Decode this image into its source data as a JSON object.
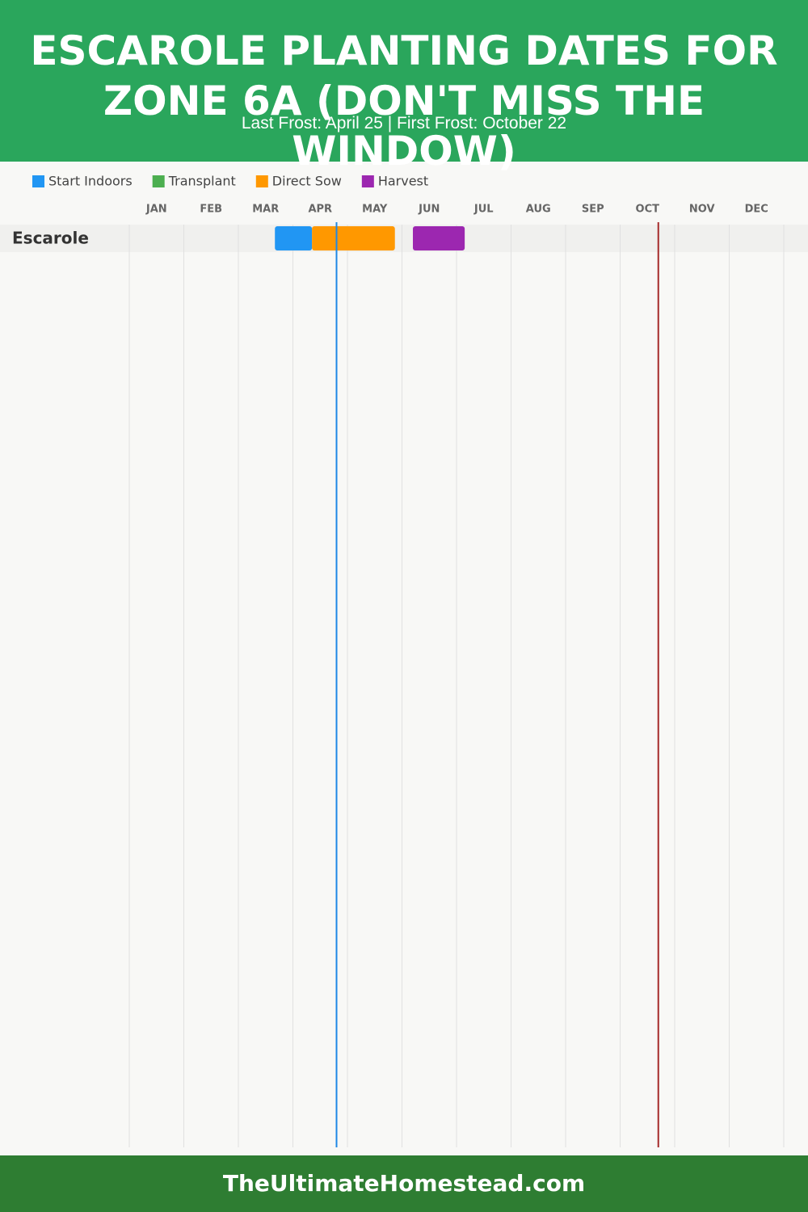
{
  "chart_data": {
    "type": "gantt",
    "title": "ESCAROLE PLANTING DATES FOR ZONE 6A (DON'T MISS THE WINDOW)",
    "subtitle": "Last Frost: April 25 | First Frost: October 22",
    "categories": [
      "JAN",
      "FEB",
      "MAR",
      "APR",
      "MAY",
      "JUN",
      "JUL",
      "AUG",
      "SEP",
      "OCT",
      "NOV",
      "DEC"
    ],
    "xlim": [
      0,
      12
    ],
    "crops": [
      "Escarole"
    ],
    "series": [
      {
        "name": "Start Indoors",
        "color": "#2196f3",
        "ranges": [
          [
            2.67,
            3.35
          ]
        ]
      },
      {
        "name": "Transplant",
        "color": "#4caf50",
        "ranges": []
      },
      {
        "name": "Direct Sow",
        "color": "#ff9800",
        "ranges": [
          [
            3.35,
            4.87
          ]
        ]
      },
      {
        "name": "Harvest",
        "color": "#9c27b0",
        "ranges": [
          [
            5.2,
            6.15
          ]
        ]
      }
    ],
    "frost_lines": [
      {
        "value": 3.8,
        "color": "#1e88e5"
      },
      {
        "value": 9.7,
        "color": "#a52a2a"
      }
    ],
    "footer": "TheUltimateHomestead.com"
  }
}
